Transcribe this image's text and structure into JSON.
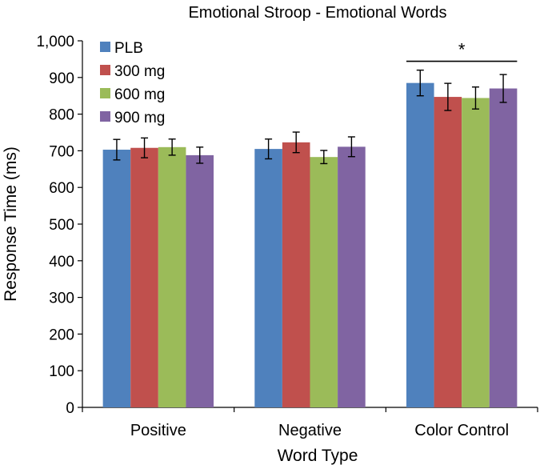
{
  "chart_data": {
    "type": "bar",
    "title": "Emotional Stroop - Emotional Words",
    "xlabel": "Word Type",
    "ylabel": "Response Time (ms)",
    "ylim": [
      0,
      1000
    ],
    "ytick_step": 100,
    "ytick_labels": [
      "0",
      "100",
      "200",
      "300",
      "400",
      "500",
      "600",
      "700",
      "800",
      "900",
      "1,000"
    ],
    "categories": [
      "Positive",
      "Negative",
      "Color Control"
    ],
    "series": [
      {
        "name": "PLB",
        "color": "#4F81BD",
        "values": [
          703,
          705,
          885
        ],
        "errors": [
          28,
          27,
          35
        ]
      },
      {
        "name": "300 mg",
        "color": "#C0504D",
        "values": [
          708,
          723,
          847
        ],
        "errors": [
          27,
          28,
          37
        ]
      },
      {
        "name": "600 mg",
        "color": "#9BBB59",
        "values": [
          710,
          683,
          844
        ],
        "errors": [
          22,
          18,
          30
        ]
      },
      {
        "name": "900 mg",
        "color": "#8064A2",
        "values": [
          688,
          711,
          870
        ],
        "errors": [
          22,
          27,
          38
        ]
      }
    ],
    "legend_position": "top-left",
    "grid": false,
    "annotations": [
      {
        "text": "*",
        "category": "Color Control",
        "y": 955
      }
    ]
  }
}
